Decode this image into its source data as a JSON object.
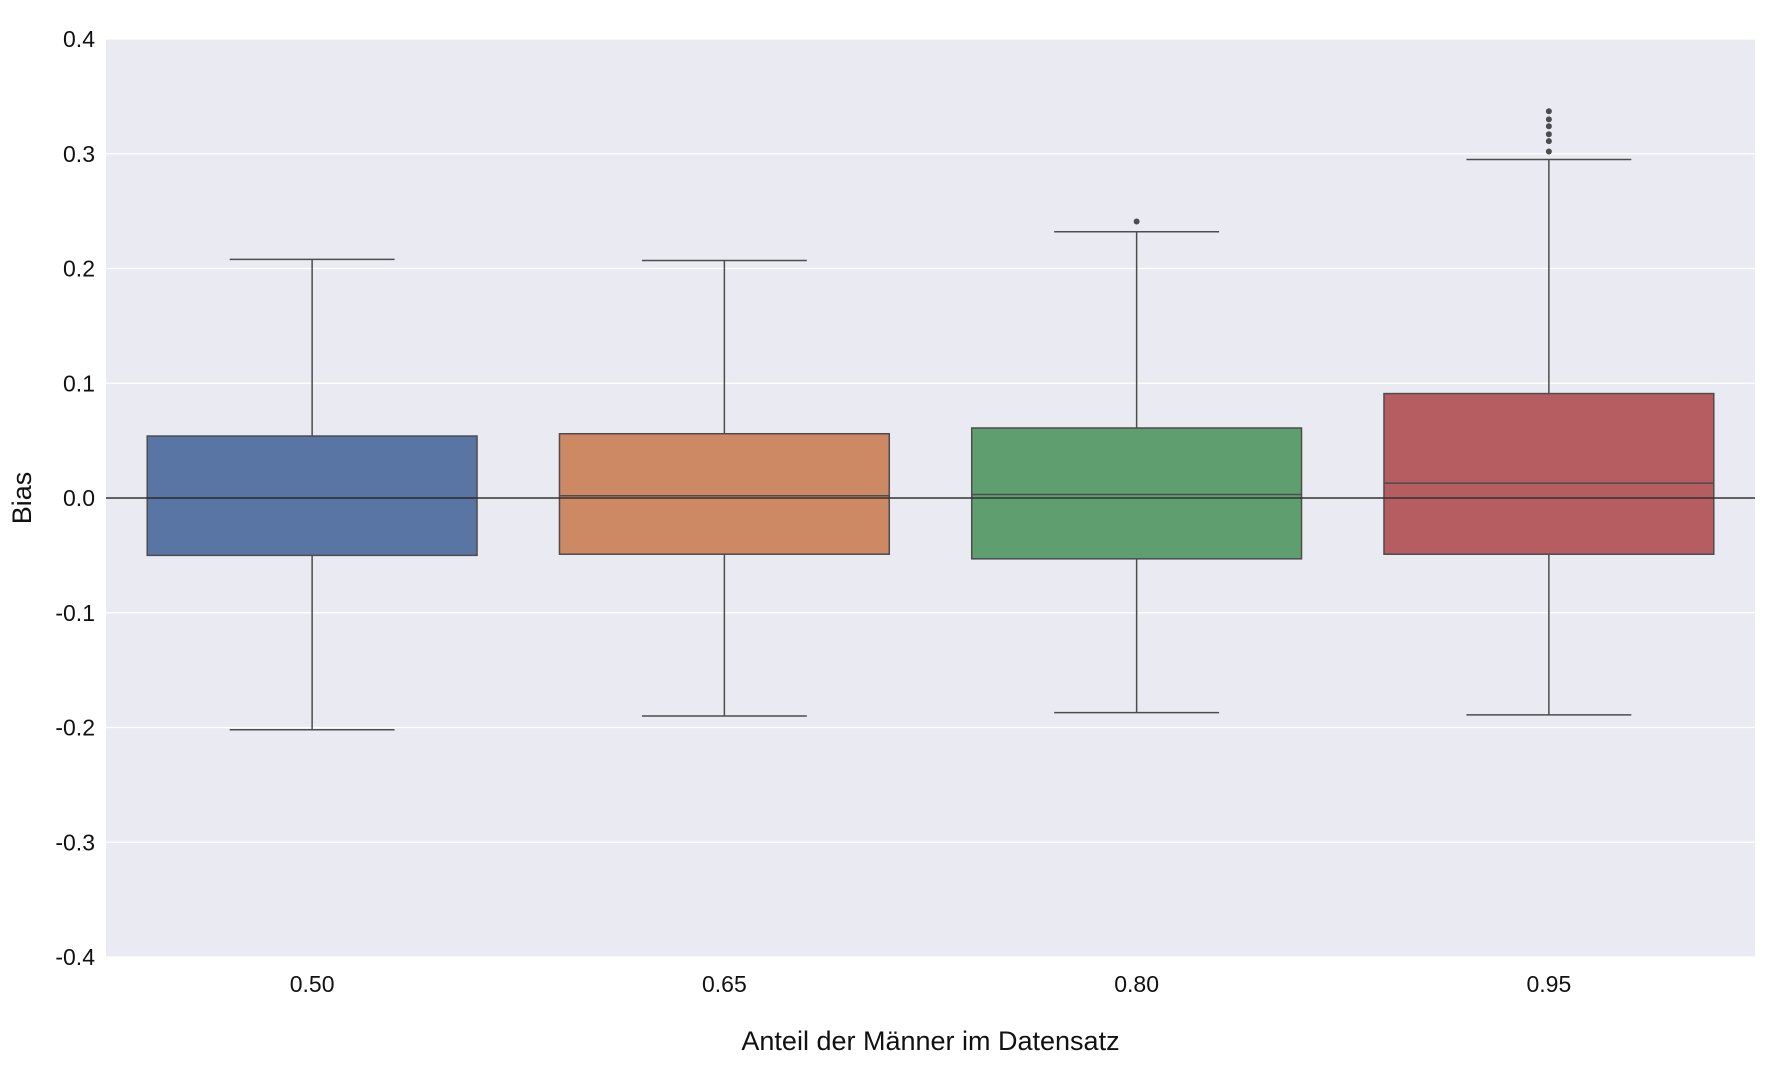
{
  "chart_data": {
    "type": "box",
    "xlabel": "Anteil der Männer im Datensatz",
    "ylabel": "Bias",
    "ylim": [
      -0.4,
      0.4
    ],
    "yticks": [
      -0.4,
      -0.3,
      -0.2,
      -0.1,
      0.0,
      0.1,
      0.2,
      0.3,
      0.4
    ],
    "ytick_labels": [
      "-0.4",
      "-0.3",
      "-0.2",
      "-0.1",
      "0.0",
      "0.1",
      "0.2",
      "0.3",
      "0.4"
    ],
    "grid": true,
    "reference_line": 0.0,
    "categories": [
      "0.50",
      "0.65",
      "0.80",
      "0.95"
    ],
    "boxes": [
      {
        "category": "0.50",
        "whisker_low": -0.202,
        "q1": -0.05,
        "median": 0.0,
        "q3": 0.054,
        "whisker_high": 0.208,
        "outliers": [],
        "color": "#5875a4"
      },
      {
        "category": "0.65",
        "whisker_low": -0.19,
        "q1": -0.049,
        "median": 0.002,
        "q3": 0.056,
        "whisker_high": 0.207,
        "outliers": [],
        "color": "#cc8963"
      },
      {
        "category": "0.80",
        "whisker_low": -0.187,
        "q1": -0.053,
        "median": 0.003,
        "q3": 0.061,
        "whisker_high": 0.232,
        "outliers": [
          0.241
        ],
        "color": "#5f9e6e"
      },
      {
        "category": "0.95",
        "whisker_low": -0.189,
        "q1": -0.049,
        "median": 0.013,
        "q3": 0.091,
        "whisker_high": 0.295,
        "outliers": [
          0.302,
          0.311,
          0.317,
          0.324,
          0.33,
          0.337
        ],
        "color": "#b55d60"
      }
    ],
    "colors": {
      "plot_background": "#eaeaf2",
      "grid": "#ffffff",
      "box_edge": "#4d4d4d",
      "reference_line": "#333333"
    }
  }
}
